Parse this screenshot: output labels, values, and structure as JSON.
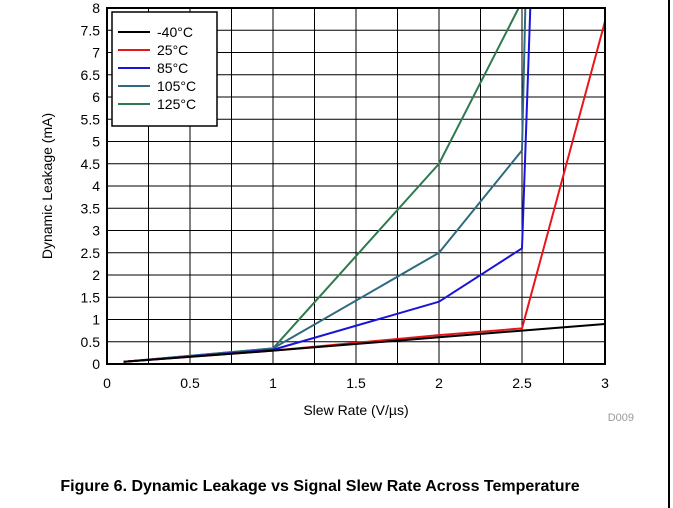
{
  "chart_data": {
    "type": "line",
    "xlabel": "Slew Rate (V/µs)",
    "ylabel": "Dynamic Leakage (mA)",
    "xlim": [
      0,
      3
    ],
    "ylim": [
      0,
      8
    ],
    "xticks": [
      "0",
      "0.5",
      "1",
      "1.5",
      "2",
      "2.5",
      "3"
    ],
    "yticks": [
      "0",
      "0.5",
      "1",
      "1.5",
      "2",
      "2.5",
      "3",
      "3.5",
      "4",
      "4.5",
      "5",
      "5.5",
      "6",
      "6.5",
      "7",
      "7.5",
      "8"
    ],
    "grid": true,
    "legend_position": "top-left",
    "figure_id": "D009",
    "series": [
      {
        "name": "-40°C",
        "color": "#000000",
        "points": [
          [
            0.1,
            0.05
          ],
          [
            1,
            0.3
          ],
          [
            2,
            0.6
          ],
          [
            2.5,
            0.75
          ],
          [
            3,
            0.9
          ]
        ]
      },
      {
        "name": "25°C",
        "color": "#e8161b",
        "points": [
          [
            0.1,
            0.05
          ],
          [
            1,
            0.3
          ],
          [
            2,
            0.65
          ],
          [
            2.5,
            0.8
          ],
          [
            3,
            7.7
          ]
        ]
      },
      {
        "name": "85°C",
        "color": "#1a14d9",
        "points": [
          [
            0.1,
            0.05
          ],
          [
            1,
            0.32
          ],
          [
            2,
            1.4
          ],
          [
            2.5,
            2.6
          ],
          [
            2.55,
            8.0
          ]
        ]
      },
      {
        "name": "105°C",
        "color": "#2f6a80",
        "points": [
          [
            0.1,
            0.05
          ],
          [
            1,
            0.35
          ],
          [
            2,
            2.5
          ],
          [
            2.5,
            4.8
          ],
          [
            2.52,
            8.0
          ]
        ]
      },
      {
        "name": "125°C",
        "color": "#2e7a4f",
        "points": [
          [
            0.1,
            0.05
          ],
          [
            1,
            0.35
          ],
          [
            2,
            4.5
          ],
          [
            2.48,
            8.0
          ]
        ]
      }
    ]
  },
  "caption": "Figure 6. Dynamic Leakage vs Signal Slew Rate Across Temperature"
}
